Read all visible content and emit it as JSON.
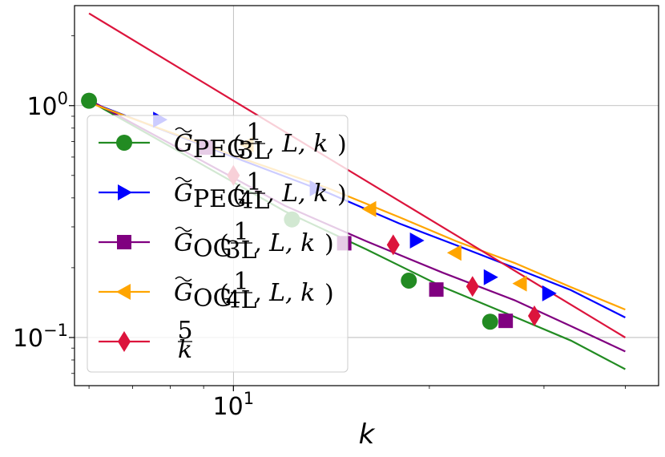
{
  "chart_data": {
    "type": "line",
    "x_scale": "log",
    "y_scale": "log",
    "xlabel": "k",
    "ylabel": "",
    "xlim": [
      5.7,
      45
    ],
    "ylim": [
      0.062,
      2.7
    ],
    "grid": true,
    "x_ticks": [
      {
        "value": 10,
        "label": "10^1"
      }
    ],
    "y_ticks": [
      {
        "value": 1,
        "label": "10^0"
      },
      {
        "value": 0.1,
        "label": "10^-1"
      }
    ],
    "legend_position": "lower-left",
    "series": [
      {
        "name": "G̃PEG(1/3L, L, k)",
        "color": "#228b22",
        "marker": "circle",
        "x": [
          6,
          12,
          16,
          21,
          27,
          33,
          40
        ],
        "y": [
          1.05,
          0.35,
          0.24,
          0.165,
          0.123,
          0.097,
          0.073
        ],
        "marker_x": [
          6,
          12.3,
          18.6,
          24.8
        ],
        "marker_y": [
          1.05,
          0.323,
          0.176,
          0.117
        ]
      },
      {
        "name": "G̃PEG(1/4L, L, k)",
        "color": "#0000ff",
        "marker": "triangle-right",
        "x": [
          6,
          10,
          14,
          18,
          22,
          27,
          33,
          40
        ],
        "y": [
          1.04,
          0.6,
          0.42,
          0.31,
          0.25,
          0.2,
          0.16,
          0.122
        ],
        "marker_x": [
          7.7,
          13.4,
          19.1,
          24.8,
          30.5
        ],
        "marker_y": [
          0.87,
          0.44,
          0.262,
          0.182,
          0.155
        ]
      },
      {
        "name": "G̃OG(1/3L, L, k)",
        "color": "#800080",
        "marker": "square",
        "x": [
          6,
          12,
          16,
          21,
          27,
          33,
          40
        ],
        "y": [
          1.06,
          0.37,
          0.26,
          0.19,
          0.145,
          0.112,
          0.087
        ],
        "marker_x": [
          9.1,
          14.8,
          20.5,
          26.2
        ],
        "marker_y": [
          0.66,
          0.255,
          0.161,
          0.118
        ]
      },
      {
        "name": "G̃OG(1/4L, L, k)",
        "color": "#ffa500",
        "marker": "triangle-left",
        "x": [
          6,
          10,
          14,
          18,
          22,
          27,
          33,
          40
        ],
        "y": [
          1.03,
          0.61,
          0.44,
          0.33,
          0.26,
          0.21,
          0.165,
          0.132
        ],
        "marker_x": [
          10.5,
          16.2,
          21.9,
          27.6
        ],
        "marker_y": [
          0.68,
          0.358,
          0.232,
          0.171
        ]
      },
      {
        "name": "5/k",
        "color": "#dc143c",
        "marker": "diamond",
        "x": [
          6,
          40
        ],
        "y": [
          2.5,
          0.1
        ],
        "marker_x": [
          10,
          17.6,
          23.3,
          29
        ],
        "marker_y": [
          0.5,
          0.251,
          0.166,
          0.124
        ]
      }
    ]
  }
}
